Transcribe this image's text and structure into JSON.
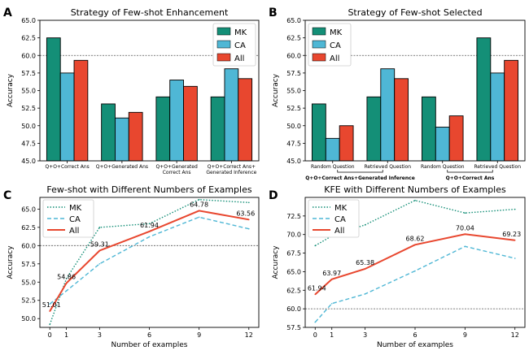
{
  "colors": {
    "MK": "#148f77",
    "CA": "#4fb7d5",
    "All": "#e8472f"
  },
  "chart_data": [
    {
      "panel": "A",
      "type": "bar",
      "title": "Strategy of Few-shot Enhancement",
      "ylabel": "Accuracy",
      "xlabel": "",
      "ylim": [
        45.0,
        65.0
      ],
      "yticks": [
        "45.0",
        "47.5",
        "50.0",
        "52.5",
        "55.0",
        "57.5",
        "60.0",
        "62.5",
        "65.0"
      ],
      "reference_line": 60.0,
      "legend": "top-right",
      "categories": [
        [
          "Q+O+Correct Ans"
        ],
        [
          "Q+O+Generated Ans"
        ],
        [
          "Q+O+Generated",
          "Correct Ans"
        ],
        [
          "Q+O+Correct Ans+",
          "Generated Inference"
        ]
      ],
      "series": [
        {
          "name": "MK",
          "values": [
            62.5,
            53.1,
            54.1,
            54.1
          ]
        },
        {
          "name": "CA",
          "values": [
            57.5,
            51.1,
            56.5,
            58.1
          ]
        },
        {
          "name": "All",
          "values": [
            59.3,
            51.9,
            55.6,
            56.7
          ]
        }
      ]
    },
    {
      "panel": "B",
      "type": "bar",
      "title": "Strategy of Few-shot Selected",
      "ylabel": "Accuracy",
      "xlabel": "",
      "ylim": [
        45.0,
        65.0
      ],
      "yticks": [
        "45.0",
        "47.5",
        "50.0",
        "52.5",
        "55.0",
        "57.5",
        "60.0",
        "62.5",
        "65.0"
      ],
      "reference_line": 60.0,
      "legend": "top-left",
      "categories": [
        [
          "Random Question"
        ],
        [
          "Retrieved Question"
        ],
        [
          "Random Question"
        ],
        [
          "Retrieved Question"
        ]
      ],
      "groups": [
        "Q+O+Correct Ans+Generated Inference",
        "Q+O+Correct Ans"
      ],
      "series": [
        {
          "name": "MK",
          "values": [
            53.1,
            54.1,
            54.1,
            62.5
          ]
        },
        {
          "name": "CA",
          "values": [
            48.2,
            58.1,
            49.8,
            57.5
          ]
        },
        {
          "name": "All",
          "values": [
            50.0,
            56.7,
            51.4,
            59.3
          ]
        }
      ]
    },
    {
      "panel": "C",
      "type": "line",
      "title": "Few-shot with Different Numbers of Examples",
      "ylabel": "Accuracy",
      "xlabel": "Number of examples",
      "x": [
        0,
        1,
        3,
        6,
        9,
        12
      ],
      "xticks": [
        "0",
        "1",
        "3",
        "6",
        "9",
        "12"
      ],
      "ylim": [
        48.8,
        66.6
      ],
      "yticks": [
        "50.0",
        "52.5",
        "55.0",
        "57.5",
        "60.0",
        "62.5",
        "65.0"
      ],
      "reference_line": 60.0,
      "legend": "top-left",
      "series": [
        {
          "name": "MK",
          "style": "dotted",
          "values": [
            49.2,
            55.5,
            62.5,
            63.0,
            66.3,
            65.9
          ]
        },
        {
          "name": "CA",
          "style": "dashed",
          "values": [
            52.0,
            53.8,
            57.5,
            61.2,
            63.9,
            62.3
          ]
        },
        {
          "name": "All",
          "style": "solid",
          "values": [
            51.01,
            54.86,
            59.31,
            61.94,
            64.78,
            63.56
          ],
          "labels": [
            "51.01",
            "54.86",
            "59.31",
            "61.94",
            "64.78",
            "63.56"
          ]
        }
      ]
    },
    {
      "panel": "D",
      "type": "line",
      "title": "KFE with Different Numbers of Examples",
      "ylabel": "Accuracy",
      "xlabel": "Number of examples",
      "x": [
        0,
        1,
        3,
        6,
        9,
        12
      ],
      "xticks": [
        "0",
        "1",
        "3",
        "6",
        "9",
        "12"
      ],
      "ylim": [
        57.5,
        75.0
      ],
      "yticks": [
        "57.5",
        "60.0",
        "62.5",
        "65.0",
        "67.5",
        "70.0",
        "72.5"
      ],
      "reference_line": 60.0,
      "legend": "top-left",
      "series": [
        {
          "name": "MK",
          "style": "dotted",
          "values": [
            68.5,
            69.8,
            71.3,
            74.6,
            72.9,
            73.4
          ]
        },
        {
          "name": "CA",
          "style": "dashed",
          "values": [
            58.2,
            60.7,
            62.0,
            65.1,
            68.4,
            66.8
          ]
        },
        {
          "name": "All",
          "style": "solid",
          "values": [
            61.94,
            63.97,
            65.38,
            68.62,
            70.04,
            69.23
          ],
          "labels": [
            "61.94",
            "63.97",
            "65.38",
            "68.62",
            "70.04",
            "69.23"
          ]
        }
      ]
    }
  ]
}
